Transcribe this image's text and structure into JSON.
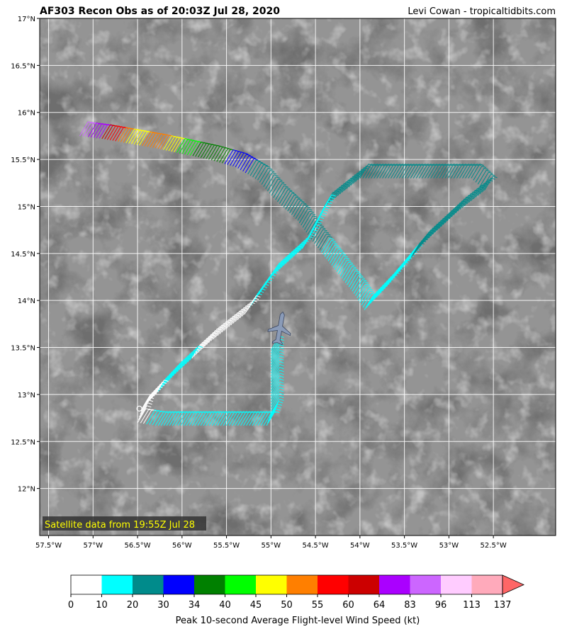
{
  "header": {
    "title": "AF303 Recon Obs as of 20:03Z Jul 28, 2020",
    "credit": "Levi Cowan - tropicaltidbits.com"
  },
  "map": {
    "lon_range": [
      -57.6,
      -51.8
    ],
    "lat_range": [
      11.5,
      17.0
    ],
    "lon_ticks": [
      {
        "value": -57.5,
        "label": "57.5°W"
      },
      {
        "value": -57.0,
        "label": "57°W"
      },
      {
        "value": -56.5,
        "label": "56.5°W"
      },
      {
        "value": -56.0,
        "label": "56°W"
      },
      {
        "value": -55.5,
        "label": "55.5°W"
      },
      {
        "value": -55.0,
        "label": "55°W"
      },
      {
        "value": -54.5,
        "label": "54.5°W"
      },
      {
        "value": -54.0,
        "label": "54°W"
      },
      {
        "value": -53.5,
        "label": "53.5°W"
      },
      {
        "value": -53.0,
        "label": "53°W"
      },
      {
        "value": -52.5,
        "label": "52.5°W"
      }
    ],
    "lat_ticks": [
      {
        "value": 17.0,
        "label": "17°N"
      },
      {
        "value": 16.5,
        "label": "16.5°N"
      },
      {
        "value": 16.0,
        "label": "16°N"
      },
      {
        "value": 15.5,
        "label": "15.5°N"
      },
      {
        "value": 15.0,
        "label": "15°N"
      },
      {
        "value": 14.5,
        "label": "14.5°N"
      },
      {
        "value": 14.0,
        "label": "14°N"
      },
      {
        "value": 13.5,
        "label": "13.5°N"
      },
      {
        "value": 13.0,
        "label": "13°N"
      },
      {
        "value": 12.5,
        "label": "12.5°N"
      },
      {
        "value": 12.0,
        "label": "12°N"
      }
    ],
    "grid": true,
    "satellite_note": "Satellite data from 19:55Z Jul 28",
    "background": "grayscale IR satellite imagery"
  },
  "chart_data": {
    "type": "map",
    "flight_track": [
      {
        "lon": -57.15,
        "lat": 15.75,
        "wind_kt": 90
      },
      {
        "lon": -56.9,
        "lat": 15.72,
        "wind_kt": 62
      },
      {
        "lon": -56.6,
        "lat": 15.67,
        "wind_kt": 48
      },
      {
        "lon": -56.3,
        "lat": 15.62,
        "wind_kt": 52
      },
      {
        "lon": -56.0,
        "lat": 15.56,
        "wind_kt": 42
      },
      {
        "lon": -55.7,
        "lat": 15.5,
        "wind_kt": 36
      },
      {
        "lon": -55.4,
        "lat": 15.42,
        "wind_kt": 32
      },
      {
        "lon": -55.15,
        "lat": 15.28,
        "wind_kt": 28
      },
      {
        "lon": -54.95,
        "lat": 15.07,
        "wind_kt": 24
      },
      {
        "lon": -54.7,
        "lat": 14.85,
        "wind_kt": 28
      },
      {
        "lon": -54.55,
        "lat": 14.65,
        "wind_kt": 22
      },
      {
        "lon": -54.3,
        "lat": 14.35,
        "wind_kt": 17
      },
      {
        "lon": -54.05,
        "lat": 14.05,
        "wind_kt": 15
      },
      {
        "lon": -53.95,
        "lat": 13.9,
        "wind_kt": 16
      },
      {
        "lon": -53.7,
        "lat": 14.15,
        "wind_kt": 18
      },
      {
        "lon": -53.3,
        "lat": 14.6,
        "wind_kt": 21
      },
      {
        "lon": -52.9,
        "lat": 14.95,
        "wind_kt": 22
      },
      {
        "lon": -52.6,
        "lat": 15.17,
        "wind_kt": 22
      },
      {
        "lon": -52.75,
        "lat": 15.3,
        "wind_kt": 22
      },
      {
        "lon": -53.4,
        "lat": 15.3,
        "wind_kt": 22
      },
      {
        "lon": -54.0,
        "lat": 15.3,
        "wind_kt": 22
      },
      {
        "lon": -54.4,
        "lat": 15.0,
        "wind_kt": 20
      },
      {
        "lon": -54.65,
        "lat": 14.55,
        "wind_kt": 18
      },
      {
        "lon": -55.0,
        "lat": 14.25,
        "wind_kt": 15
      },
      {
        "lon": -55.3,
        "lat": 13.85,
        "wind_kt": 9
      },
      {
        "lon": -55.7,
        "lat": 13.55,
        "wind_kt": 8
      },
      {
        "lon": -56.1,
        "lat": 13.2,
        "wind_kt": 12
      },
      {
        "lon": -56.45,
        "lat": 12.85,
        "wind_kt": 8
      },
      {
        "lon": -56.5,
        "lat": 12.7,
        "wind_kt": 8
      },
      {
        "lon": -56.3,
        "lat": 12.67,
        "wind_kt": 12
      },
      {
        "lon": -55.6,
        "lat": 12.67,
        "wind_kt": 12
      },
      {
        "lon": -55.05,
        "lat": 12.67,
        "wind_kt": 12
      },
      {
        "lon": -55.0,
        "lat": 12.8,
        "wind_kt": 12
      },
      {
        "lon": -55.0,
        "lat": 13.2,
        "wind_kt": 12
      },
      {
        "lon": -55.0,
        "lat": 13.5,
        "wind_kt": 12
      }
    ],
    "aircraft_position": {
      "lon": -54.9,
      "lat": 13.7
    }
  },
  "colorbar": {
    "label": "Peak 10-second Average Flight-level Wind Speed (kt)",
    "bins": [
      {
        "from": "0",
        "to": "10",
        "color": "#ffffff"
      },
      {
        "from": "10",
        "to": "20",
        "color": "#00ffff"
      },
      {
        "from": "20",
        "to": "30",
        "color": "#008b8b"
      },
      {
        "from": "30",
        "to": "34",
        "color": "#0000ff"
      },
      {
        "from": "34",
        "to": "40",
        "color": "#008000"
      },
      {
        "from": "40",
        "to": "45",
        "color": "#00ff00"
      },
      {
        "from": "45",
        "to": "50",
        "color": "#ffff00"
      },
      {
        "from": "50",
        "to": "55",
        "color": "#ff7f00"
      },
      {
        "from": "55",
        "to": "60",
        "color": "#ff0000"
      },
      {
        "from": "60",
        "to": "64",
        "color": "#cc0000"
      },
      {
        "from": "64",
        "to": "83",
        "color": "#aa00ff"
      },
      {
        "from": "83",
        "to": "96",
        "color": "#cc66ff"
      },
      {
        "from": "96",
        "to": "113",
        "color": "#ffccff"
      },
      {
        "from": "113",
        "to": "137",
        "color": "#ffaabb"
      }
    ],
    "extend_color": "#ff6666",
    "tick_labels": [
      "0",
      "10",
      "20",
      "30",
      "34",
      "40",
      "45",
      "50",
      "55",
      "60",
      "64",
      "83",
      "96",
      "113",
      "137"
    ]
  }
}
